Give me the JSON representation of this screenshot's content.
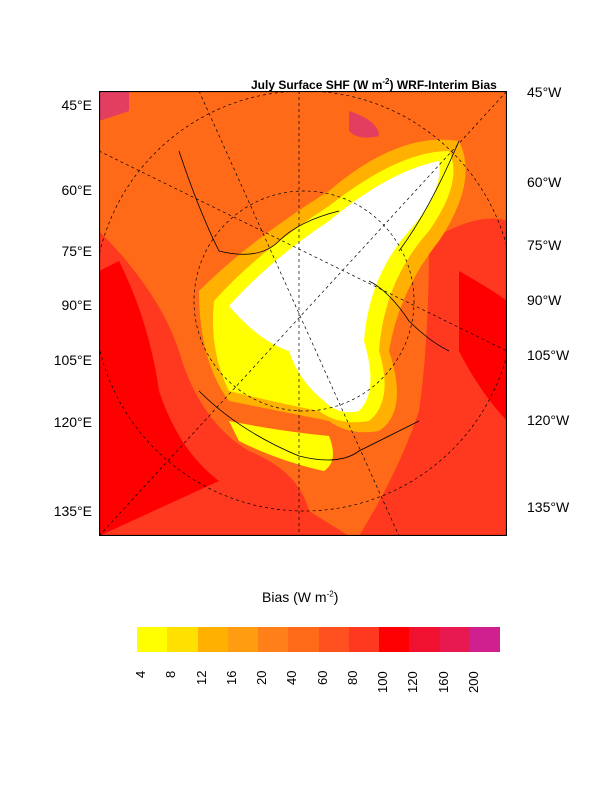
{
  "title": {
    "pre": "July Surface SHF (W m",
    "sup": "-2",
    "post": ") WRF-Interim Bias"
  },
  "left_labels": [
    "45°E",
    "60°E",
    "75°E",
    "90°E",
    "105°E",
    "120°E",
    "135°E"
  ],
  "right_labels": [
    "45°W",
    "60°W",
    "75°W",
    "90°W",
    "105°W",
    "120°W",
    "135°W"
  ],
  "colorbar": {
    "title_pre": "Bias (W m",
    "title_sup": "-2",
    "title_post": ")",
    "ticks": [
      "4",
      "8",
      "12",
      "16",
      "20",
      "40",
      "60",
      "80",
      "100",
      "120",
      "160",
      "200"
    ],
    "colors": [
      "#ffff00",
      "#ffe000",
      "#ffb000",
      "#ff9c10",
      "#ff8018",
      "#ff6a18",
      "#ff5020",
      "#ff3820",
      "#ff0000",
      "#f01030",
      "#e81850",
      "#d02090"
    ]
  }
}
